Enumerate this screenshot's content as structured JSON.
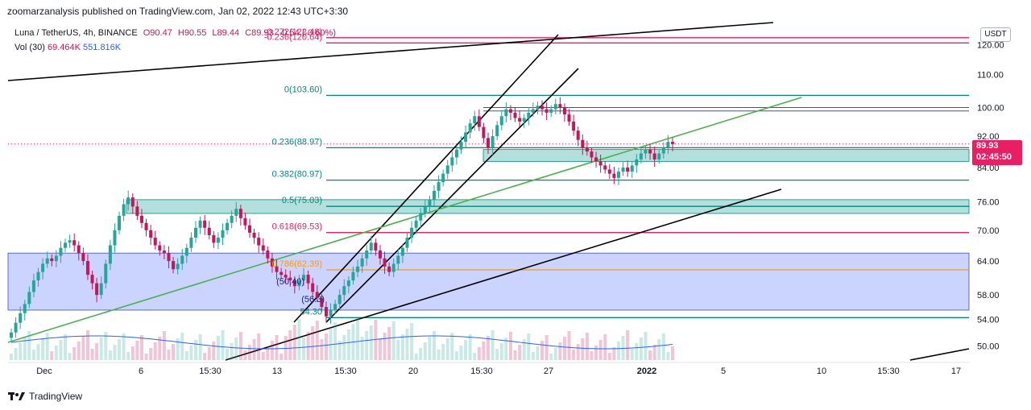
{
  "header": {
    "publisher_text": "zoomarzanalysis published on TradingView.com, Jan 02, 2022 12:43 UTC+3:30"
  },
  "legend": {
    "symbol": "Luna / TetherUS, 4h, BINANCE",
    "open": "O90.47",
    "high": "H90.55",
    "low": "L89.44",
    "close": "C89.93",
    "change": "-0.54 (-0.60%)",
    "vol_label": "Vol (30)",
    "vol_value1": "69.464K",
    "vol_value2": "551.816K"
  },
  "axis_button": "USDT",
  "current_price": {
    "value": "89.93",
    "countdown": "02:45:50"
  },
  "footer": {
    "brand": "TradingView"
  },
  "colors": {
    "up": "#26a69a",
    "down": "#c2185b",
    "fib_green": "#00897b",
    "fib_red": "#e91e63",
    "fib_orange": "#ff9800",
    "trend_green": "#4caf50",
    "zone_blue": "#8c9eff",
    "zone_teal": "#80cbc4"
  },
  "chart_data": {
    "type": "candlestick",
    "symbol": "LUNA/USDT",
    "timeframe": "4h",
    "y_axis": {
      "ticks": [
        "120.00",
        "110.00",
        "100.00",
        "92.00",
        "84.00",
        "76.00",
        "70.00",
        "64.00",
        "58.00",
        "54.00",
        "50.00"
      ],
      "scale": "log",
      "range": [
        48,
        128
      ]
    },
    "x_axis": {
      "ticks": [
        "Dec",
        "6",
        "15:30",
        "13",
        "15:30",
        "20",
        "15:30",
        "27",
        "2022",
        "5",
        "10",
        "15:30",
        "17"
      ]
    },
    "fib_levels": [
      {
        "label": "-0.236(120.64)",
        "value": 120.64
      },
      {
        "label": "0(103.60)",
        "value": 103.6
      },
      {
        "label": "0.236(88.97)",
        "value": 88.97
      },
      {
        "label": "0.382(80.97)",
        "value": 80.97
      },
      {
        "label": "0.5(75.03)",
        "value": 75.03
      },
      {
        "label": "0.618(69.53)",
        "value": 69.53
      },
      {
        "label": "0.786(62.39)",
        "value": 62.39
      },
      {
        "label": "54.30",
        "value": 54.3
      }
    ],
    "fib_partial_labels": [
      "-0.272(122.48)",
      "(50.40)",
      "(56.3)"
    ],
    "close_series": [
      52.0,
      53.5,
      55.0,
      56.5,
      58.5,
      60.5,
      62.0,
      63.5,
      64.5,
      64.0,
      65.0,
      66.5,
      67.5,
      68.0,
      67.0,
      65.5,
      64.0,
      61.5,
      60.0,
      58.0,
      60.0,
      63.5,
      67.0,
      70.0,
      73.0,
      75.5,
      77.0,
      75.0,
      73.0,
      71.5,
      70.0,
      68.5,
      67.0,
      66.0,
      65.5,
      64.0,
      62.5,
      63.5,
      65.0,
      66.5,
      68.5,
      70.5,
      72.0,
      70.5,
      69.0,
      67.5,
      68.5,
      70.0,
      71.5,
      73.0,
      74.5,
      72.5,
      71.0,
      69.5,
      68.5,
      67.0,
      66.0,
      64.5,
      63.0,
      62.0,
      61.5,
      61.0,
      60.5,
      59.5,
      60.5,
      61.5,
      60.0,
      58.5,
      57.5,
      56.0,
      54.5,
      55.5,
      56.5,
      58.0,
      59.5,
      60.5,
      62.0,
      63.0,
      64.5,
      66.0,
      67.5,
      66.0,
      64.5,
      63.0,
      62.0,
      63.5,
      65.0,
      66.5,
      68.5,
      70.5,
      72.0,
      73.5,
      75.0,
      76.5,
      78.5,
      80.5,
      82.5,
      84.5,
      86.5,
      88.5,
      90.5,
      93.0,
      95.5,
      97.5,
      94.5,
      91.5,
      89.0,
      92.0,
      95.0,
      97.5,
      99.5,
      98.5,
      97.0,
      96.0,
      97.0,
      98.5,
      99.5,
      100.5,
      99.5,
      98.5,
      99.5,
      101.0,
      100.0,
      98.0,
      96.0,
      93.5,
      91.0,
      89.0,
      88.0,
      86.5,
      85.5,
      84.5,
      83.5,
      82.5,
      81.5,
      83.0,
      84.0,
      83.0,
      84.5,
      86.0,
      87.5,
      88.5,
      87.5,
      86.0,
      87.5,
      89.0,
      90.5,
      89.93
    ]
  }
}
